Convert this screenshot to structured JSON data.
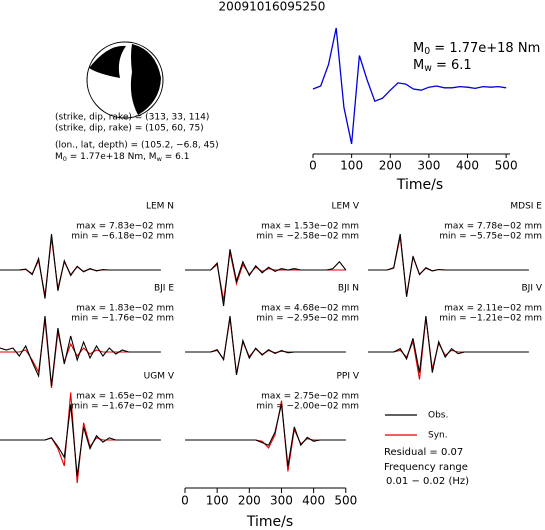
{
  "title": "20091016095250",
  "mechanism": {
    "lines": [
      "(strike, dip, rake) = (313, 33, 114)",
      "(strike, dip, rake) = (105, 60, 75)",
      "(lon., lat, depth) = (105.2, −6.8, 45)"
    ],
    "moment_line": [
      {
        "text": "M"
      },
      {
        "sub": "0"
      },
      {
        "text": " = 1.77e+18 Nm, M"
      },
      {
        "sub": "w"
      },
      {
        "text": " = 6.1"
      }
    ]
  },
  "chart_data": [
    {
      "type": "line",
      "xlabel": "Time/s",
      "color": "#0000dd",
      "annotations": [
        [
          {
            "text": "M"
          },
          {
            "sub": "0"
          },
          {
            "text": " = 1.77e+18 Nm"
          }
        ],
        [
          {
            "text": "M"
          },
          {
            "sub": "w"
          },
          {
            "text": " = 6.1"
          }
        ]
      ],
      "x": [
        0,
        20,
        40,
        60,
        80,
        100,
        120,
        140,
        160,
        180,
        200,
        220,
        240,
        260,
        280,
        300,
        320,
        340,
        360,
        380,
        400,
        420,
        440,
        460,
        480,
        500
      ],
      "values": [
        0,
        0.05,
        0.4,
        1.0,
        -0.3,
        -0.9,
        0.55,
        0.15,
        -0.2,
        -0.15,
        -0.02,
        0.1,
        0.08,
        0.0,
        -0.02,
        0.03,
        0.05,
        0.02,
        0.02,
        0.04,
        0.03,
        0.01,
        0.04,
        0.03,
        0.04,
        0.02
      ],
      "xlim": [
        0,
        510
      ],
      "ylim": [
        -1,
        1.05
      ],
      "xticks": [
        0,
        100,
        200,
        300,
        400,
        500
      ]
    },
    {
      "type": "line",
      "xlabel": "Time/s",
      "x": [
        0,
        20,
        40,
        60,
        80,
        100,
        120,
        140,
        160,
        180,
        200,
        220,
        240,
        260,
        280,
        300,
        320,
        340,
        360,
        380,
        400,
        420,
        440,
        460,
        480,
        500
      ],
      "xlim": [
        0,
        510
      ],
      "xticks": [
        0,
        100,
        200,
        300,
        400,
        500
      ],
      "series": [
        {
          "name": "Obs.",
          "color": "#000000"
        },
        {
          "name": "Syn.",
          "color": "#e00000"
        }
      ],
      "residual": "Residual = 0.07",
      "frequency_label": "Frequency range",
      "frequency_range": "0.01 − 0.02 (Hz)",
      "panels": [
        {
          "station": "LEM N",
          "max_label": "max = 7.83e−02 mm",
          "min_label": "min = −6.18e−02 mm",
          "obs": [
            0,
            0,
            0,
            0,
            0.002,
            -0.01,
            0.025,
            -0.062,
            0.078,
            -0.045,
            0.02,
            -0.012,
            0.008,
            -0.004,
            0.003,
            -0.002,
            0.001,
            0,
            0,
            0,
            0,
            0,
            0,
            0,
            0,
            0
          ],
          "syn": [
            0,
            0,
            0,
            0,
            0.001,
            -0.008,
            0.02,
            -0.055,
            0.07,
            -0.04,
            0.018,
            -0.01,
            0.007,
            -0.003,
            0.002,
            -0.001,
            0,
            0,
            0,
            0,
            0,
            0,
            0,
            0,
            0,
            0
          ]
        },
        {
          "station": "LEM V",
          "max_label": "max = 1.53e−02 mm",
          "min_label": "min = −2.58e−02 mm",
          "obs": [
            0,
            0,
            0,
            0,
            0,
            0.005,
            -0.026,
            0.015,
            -0.008,
            0.006,
            -0.004,
            0.003,
            -0.002,
            0.002,
            -0.001,
            0.001,
            0,
            0.001,
            0,
            0,
            0,
            0,
            0,
            0.001,
            0.006,
            0
          ],
          "syn": [
            0,
            0,
            0,
            0,
            0,
            0.004,
            -0.022,
            0.013,
            -0.01,
            0.004,
            -0.003,
            0.002,
            -0.001,
            0.001,
            0,
            0,
            0,
            0,
            0,
            0,
            0,
            0,
            0,
            0,
            0,
            0
          ]
        },
        {
          "station": "MDSI E",
          "max_label": "max = 7.78e−02 mm",
          "min_label": "min = −5.75e−02 mm",
          "obs": [
            0,
            0,
            0,
            0,
            0.005,
            0.078,
            -0.058,
            0.03,
            -0.01,
            0.005,
            -0.002,
            0.001,
            0,
            0,
            0,
            0,
            0,
            0,
            0,
            0,
            0,
            0,
            0,
            0,
            0,
            0
          ],
          "syn": [
            0,
            0,
            0,
            0,
            0.004,
            0.072,
            -0.055,
            0.028,
            -0.009,
            0.004,
            -0.002,
            0.001,
            0,
            0,
            0,
            0,
            0,
            0,
            0,
            0,
            0,
            0,
            0,
            0,
            0,
            0
          ]
        },
        {
          "station": "BJI E",
          "max_label": "max = 1.83e−02 mm",
          "min_label": "min = −1.76e−02 mm",
          "obs": [
            0.002,
            0.001,
            0.002,
            -0.002,
            0.003,
            -0.005,
            -0.012,
            0.018,
            -0.017,
            0.012,
            -0.006,
            0.008,
            -0.004,
            0.005,
            -0.003,
            0.003,
            -0.002,
            0.002,
            -0.001,
            0.001,
            0,
            0,
            0,
            0,
            0,
            0
          ],
          "syn": [
            0,
            0,
            0,
            0,
            0.001,
            -0.004,
            -0.01,
            0.016,
            -0.018,
            0.01,
            -0.005,
            0.004,
            -0.002,
            0.002,
            -0.001,
            0.001,
            0,
            0,
            0,
            0,
            0,
            0,
            0,
            0,
            0,
            0
          ]
        },
        {
          "station": "BJI N",
          "max_label": "max = 4.68e−02 mm",
          "min_label": "min = −2.95e−02 mm",
          "obs": [
            0,
            0,
            0,
            0,
            0,
            0.003,
            -0.01,
            0.047,
            -0.03,
            0.015,
            -0.008,
            0.005,
            -0.004,
            0.003,
            -0.002,
            0.002,
            -0.001,
            0,
            0,
            0,
            0,
            0,
            0,
            0,
            0,
            0
          ],
          "syn": [
            0,
            0,
            0,
            0,
            0,
            0.002,
            -0.009,
            0.044,
            -0.028,
            0.013,
            -0.006,
            0.004,
            -0.003,
            0.002,
            -0.001,
            0.001,
            0,
            0,
            0,
            0,
            0,
            0,
            0,
            0,
            0,
            0
          ]
        },
        {
          "station": "BJI V",
          "max_label": "max = 2.11e−02 mm",
          "min_label": "min = −1.21e−02 mm",
          "obs": [
            0,
            0,
            0,
            0,
            0,
            0.002,
            -0.004,
            0.008,
            -0.012,
            0.021,
            -0.012,
            0.006,
            -0.003,
            0.002,
            -0.001,
            0,
            0,
            0,
            0,
            0,
            0,
            0,
            0,
            0,
            0,
            0
          ],
          "syn": [
            0,
            0,
            0,
            0,
            0,
            0.001,
            -0.003,
            0.006,
            -0.016,
            0.02,
            -0.01,
            0.005,
            -0.002,
            0.001,
            0,
            0,
            0,
            0,
            0,
            0,
            0,
            0,
            0,
            0,
            0,
            0
          ]
        },
        {
          "station": "UGM V",
          "max_label": "max = 1.65e−02 mm",
          "min_label": "min = −1.67e−02 mm",
          "obs": [
            0,
            0,
            0,
            0,
            0,
            0,
            0,
            0,
            0.001,
            -0.003,
            -0.008,
            0.0165,
            -0.0167,
            0.006,
            -0.004,
            0.002,
            -0.001,
            0.001,
            0,
            0,
            0,
            0,
            0,
            0,
            0,
            0
          ],
          "syn": [
            0,
            0,
            0,
            0,
            0,
            0,
            0,
            0,
            0.001,
            -0.004,
            -0.012,
            0.022,
            -0.02,
            0.008,
            -0.003,
            0.001,
            0,
            0,
            0,
            0,
            0,
            0,
            0,
            0,
            0,
            0
          ]
        },
        {
          "station": "PPI V",
          "max_label": "max = 2.75e−02 mm",
          "min_label": "min = −2.00e−02 mm",
          "obs": [
            0,
            0,
            0,
            0,
            0,
            0,
            0,
            0,
            0,
            0,
            0,
            0,
            -0.002,
            -0.004,
            0.006,
            0.0275,
            -0.02,
            0.01,
            -0.004,
            0.002,
            -0.001,
            0,
            0,
            0,
            0,
            0
          ],
          "syn": [
            0,
            0,
            0,
            0,
            0,
            0,
            0,
            0,
            0,
            0,
            0,
            0,
            -0.001,
            -0.006,
            0.004,
            0.03,
            -0.024,
            0.008,
            -0.003,
            0.001,
            0,
            0,
            0,
            0,
            0,
            0
          ]
        }
      ]
    }
  ]
}
